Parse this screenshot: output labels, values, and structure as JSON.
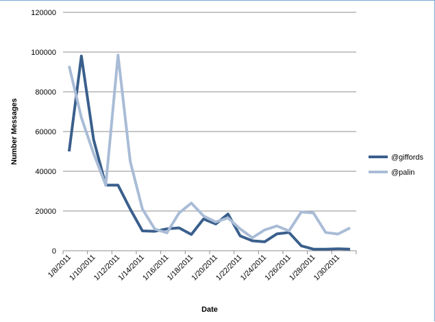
{
  "chart_data": {
    "type": "line",
    "title": "",
    "xlabel": "Date",
    "ylabel": "Number Messages",
    "ylim": [
      0,
      120000
    ],
    "yticks": [
      "0",
      "20000",
      "40000",
      "60000",
      "80000",
      "100000",
      "120000"
    ],
    "x": [
      "1/8/2011",
      "1/9/2011",
      "1/10/2011",
      "1/11/2011",
      "1/12/2011",
      "1/13/2011",
      "1/14/2011",
      "1/15/2011",
      "1/16/2011",
      "1/17/2011",
      "1/18/2011",
      "1/19/2011",
      "1/20/2011",
      "1/21/2011",
      "1/22/2011",
      "1/23/2011",
      "1/24/2011",
      "1/25/2011",
      "1/26/2011",
      "1/27/2011",
      "1/28/2011",
      "1/29/2011",
      "1/30/2011",
      "1/31/2011"
    ],
    "xtick_labels": [
      "1/8/2011",
      "1/10/2011",
      "1/12/2011",
      "1/14/2011",
      "1/16/2011",
      "1/18/2011",
      "1/20/2011",
      "1/22/2011",
      "1/24/2011",
      "1/26/2011",
      "1/28/2011",
      "1/30/2011"
    ],
    "grid": true,
    "legend_position": "right",
    "series": [
      {
        "name": "@giffords",
        "color": "#3a5f8c",
        "values": [
          50000,
          98000,
          56000,
          33000,
          33000,
          21000,
          10000,
          9800,
          11000,
          11500,
          8200,
          16000,
          13500,
          18500,
          7500,
          5000,
          4500,
          8500,
          9200,
          2500,
          800,
          800,
          1000,
          800
        ]
      },
      {
        "name": "@palin",
        "color": "#a9bcd6",
        "values": [
          93000,
          67000,
          49000,
          33000,
          98500,
          45000,
          21000,
          11000,
          9000,
          19000,
          24000,
          17500,
          14500,
          16500,
          11000,
          6500,
          10500,
          12500,
          10000,
          19500,
          19000,
          9200,
          8400,
          11500
        ]
      }
    ]
  }
}
